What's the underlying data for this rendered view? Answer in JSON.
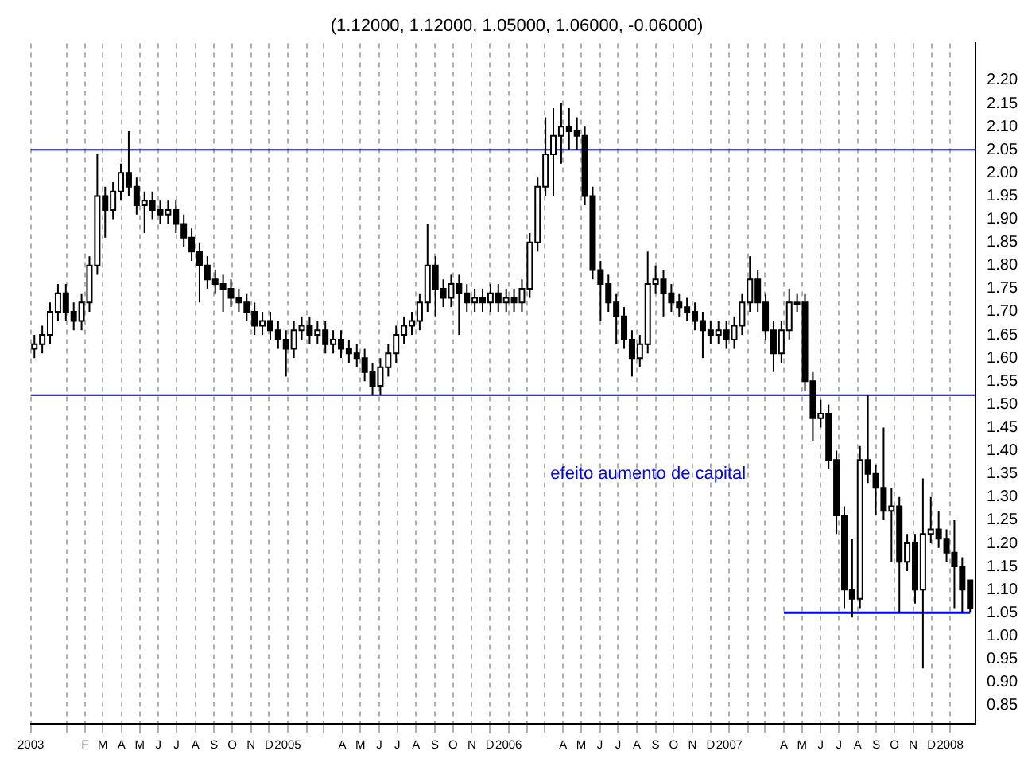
{
  "chart_data": {
    "type": "candlestick",
    "title": "(1.12000, 1.12000, 1.05000, 1.06000, -0.06000)",
    "x": [
      "2003-11-09",
      "2003-11-22",
      "2003-12-05",
      "2003-12-18",
      "2003-12-31",
      "2004-01-13",
      "2004-01-26",
      "2004-02-08",
      "2004-02-21",
      "2004-03-05",
      "2004-03-18",
      "2004-03-31",
      "2004-04-13",
      "2004-04-26",
      "2004-05-09",
      "2004-05-22",
      "2004-06-04",
      "2004-06-17",
      "2004-06-30",
      "2004-07-13",
      "2004-07-26",
      "2004-08-08",
      "2004-08-21",
      "2004-09-03",
      "2004-09-16",
      "2004-09-29",
      "2004-10-12",
      "2004-10-25",
      "2004-11-07",
      "2004-11-20",
      "2004-12-03",
      "2004-12-16",
      "2004-12-29",
      "2005-01-11",
      "2005-01-24",
      "2005-02-06",
      "2005-02-19",
      "2005-03-04",
      "2005-03-17",
      "2005-03-30",
      "2005-04-12",
      "2005-04-25",
      "2005-05-08",
      "2005-05-21",
      "2005-06-03",
      "2005-06-16",
      "2005-06-29",
      "2005-07-12",
      "2005-07-25",
      "2005-08-07",
      "2005-08-20",
      "2005-09-02",
      "2005-09-15",
      "2005-09-28",
      "2005-10-11",
      "2005-10-24",
      "2005-11-06",
      "2005-11-19",
      "2005-12-02",
      "2005-12-15",
      "2005-12-28",
      "2006-01-10",
      "2006-01-23",
      "2006-02-05",
      "2006-02-18",
      "2006-03-03",
      "2006-03-16",
      "2006-03-29",
      "2006-04-11",
      "2006-04-24",
      "2006-05-07",
      "2006-05-20",
      "2006-06-02",
      "2006-06-15",
      "2006-06-28",
      "2006-07-11",
      "2006-07-24",
      "2006-08-06",
      "2006-08-19",
      "2006-09-01",
      "2006-09-14",
      "2006-09-27",
      "2006-10-10",
      "2006-10-23",
      "2006-11-05",
      "2006-11-18",
      "2006-12-01",
      "2006-12-14",
      "2006-12-27",
      "2007-01-09",
      "2007-01-22",
      "2007-02-04",
      "2007-02-17",
      "2007-03-02",
      "2007-03-15",
      "2007-03-28",
      "2007-04-10",
      "2007-04-23",
      "2007-05-06",
      "2007-05-19",
      "2007-06-01",
      "2007-06-14",
      "2007-06-27",
      "2007-07-10",
      "2007-07-23",
      "2007-08-05",
      "2007-08-18",
      "2007-08-31",
      "2007-09-13",
      "2007-09-26",
      "2007-10-09",
      "2007-10-22",
      "2007-11-04",
      "2007-11-17",
      "2007-11-30",
      "2007-12-13",
      "2007-12-26",
      "2008-01-08",
      "2008-01-21",
      "2008-02-03"
    ],
    "ohlc": [
      [
        1.62,
        1.65,
        1.6,
        1.63
      ],
      [
        1.63,
        1.67,
        1.61,
        1.65
      ],
      [
        1.65,
        1.72,
        1.63,
        1.7
      ],
      [
        1.7,
        1.76,
        1.68,
        1.74
      ],
      [
        1.74,
        1.76,
        1.68,
        1.7
      ],
      [
        1.7,
        1.72,
        1.66,
        1.68
      ],
      [
        1.68,
        1.74,
        1.66,
        1.72
      ],
      [
        1.72,
        1.82,
        1.7,
        1.8
      ],
      [
        1.8,
        2.04,
        1.78,
        1.95
      ],
      [
        1.95,
        1.97,
        1.86,
        1.92
      ],
      [
        1.92,
        1.98,
        1.9,
        1.96
      ],
      [
        1.96,
        2.02,
        1.94,
        2.0
      ],
      [
        2.0,
        2.09,
        1.95,
        1.97
      ],
      [
        1.97,
        1.99,
        1.91,
        1.93
      ],
      [
        1.93,
        1.96,
        1.87,
        1.94
      ],
      [
        1.94,
        1.96,
        1.9,
        1.92
      ],
      [
        1.92,
        1.94,
        1.89,
        1.91
      ],
      [
        1.91,
        1.94,
        1.89,
        1.92
      ],
      [
        1.92,
        1.94,
        1.87,
        1.89
      ],
      [
        1.89,
        1.91,
        1.84,
        1.86
      ],
      [
        1.86,
        1.88,
        1.81,
        1.83
      ],
      [
        1.83,
        1.85,
        1.72,
        1.8
      ],
      [
        1.8,
        1.82,
        1.75,
        1.77
      ],
      [
        1.77,
        1.79,
        1.74,
        1.76
      ],
      [
        1.76,
        1.78,
        1.7,
        1.75
      ],
      [
        1.75,
        1.77,
        1.71,
        1.73
      ],
      [
        1.73,
        1.75,
        1.7,
        1.72
      ],
      [
        1.72,
        1.74,
        1.68,
        1.7
      ],
      [
        1.7,
        1.72,
        1.65,
        1.67
      ],
      [
        1.67,
        1.7,
        1.65,
        1.68
      ],
      [
        1.68,
        1.7,
        1.64,
        1.66
      ],
      [
        1.66,
        1.68,
        1.62,
        1.64
      ],
      [
        1.64,
        1.66,
        1.56,
        1.62
      ],
      [
        1.62,
        1.68,
        1.6,
        1.66
      ],
      [
        1.66,
        1.69,
        1.64,
        1.67
      ],
      [
        1.67,
        1.69,
        1.63,
        1.65
      ],
      [
        1.65,
        1.68,
        1.63,
        1.66
      ],
      [
        1.66,
        1.68,
        1.61,
        1.63
      ],
      [
        1.63,
        1.66,
        1.61,
        1.64
      ],
      [
        1.64,
        1.66,
        1.6,
        1.62
      ],
      [
        1.62,
        1.64,
        1.59,
        1.61
      ],
      [
        1.61,
        1.63,
        1.58,
        1.6
      ],
      [
        1.6,
        1.62,
        1.55,
        1.57
      ],
      [
        1.57,
        1.59,
        1.52,
        1.54
      ],
      [
        1.54,
        1.6,
        1.52,
        1.58
      ],
      [
        1.58,
        1.63,
        1.56,
        1.61
      ],
      [
        1.61,
        1.67,
        1.59,
        1.65
      ],
      [
        1.65,
        1.69,
        1.63,
        1.67
      ],
      [
        1.67,
        1.7,
        1.65,
        1.68
      ],
      [
        1.68,
        1.74,
        1.66,
        1.72
      ],
      [
        1.72,
        1.89,
        1.7,
        1.8
      ],
      [
        1.8,
        1.82,
        1.69,
        1.75
      ],
      [
        1.75,
        1.77,
        1.71,
        1.73
      ],
      [
        1.73,
        1.78,
        1.71,
        1.76
      ],
      [
        1.76,
        1.78,
        1.65,
        1.74
      ],
      [
        1.74,
        1.76,
        1.7,
        1.72
      ],
      [
        1.72,
        1.75,
        1.7,
        1.73
      ],
      [
        1.73,
        1.75,
        1.7,
        1.72
      ],
      [
        1.72,
        1.76,
        1.7,
        1.74
      ],
      [
        1.74,
        1.76,
        1.7,
        1.72
      ],
      [
        1.72,
        1.75,
        1.7,
        1.73
      ],
      [
        1.73,
        1.75,
        1.7,
        1.72
      ],
      [
        1.72,
        1.77,
        1.7,
        1.75
      ],
      [
        1.75,
        1.87,
        1.73,
        1.85
      ],
      [
        1.85,
        1.99,
        1.83,
        1.97
      ],
      [
        1.97,
        2.12,
        1.95,
        2.04
      ],
      [
        2.04,
        2.14,
        1.95,
        2.08
      ],
      [
        2.08,
        2.15,
        2.02,
        2.1
      ],
      [
        2.1,
        2.14,
        2.05,
        2.09
      ],
      [
        2.09,
        2.12,
        2.05,
        2.08
      ],
      [
        2.08,
        2.1,
        1.93,
        1.95
      ],
      [
        1.95,
        1.97,
        1.77,
        1.79
      ],
      [
        1.79,
        1.81,
        1.68,
        1.76
      ],
      [
        1.76,
        1.78,
        1.7,
        1.72
      ],
      [
        1.72,
        1.74,
        1.63,
        1.69
      ],
      [
        1.69,
        1.71,
        1.62,
        1.64
      ],
      [
        1.64,
        1.66,
        1.56,
        1.6
      ],
      [
        1.6,
        1.65,
        1.58,
        1.63
      ],
      [
        1.63,
        1.83,
        1.61,
        1.76
      ],
      [
        1.76,
        1.8,
        1.74,
        1.77
      ],
      [
        1.77,
        1.79,
        1.69,
        1.74
      ],
      [
        1.74,
        1.76,
        1.7,
        1.72
      ],
      [
        1.72,
        1.74,
        1.69,
        1.71
      ],
      [
        1.71,
        1.73,
        1.68,
        1.7
      ],
      [
        1.7,
        1.72,
        1.66,
        1.68
      ],
      [
        1.68,
        1.7,
        1.6,
        1.66
      ],
      [
        1.66,
        1.68,
        1.63,
        1.65
      ],
      [
        1.65,
        1.68,
        1.63,
        1.66
      ],
      [
        1.66,
        1.68,
        1.62,
        1.64
      ],
      [
        1.64,
        1.69,
        1.62,
        1.67
      ],
      [
        1.67,
        1.74,
        1.65,
        1.72
      ],
      [
        1.72,
        1.82,
        1.7,
        1.77
      ],
      [
        1.77,
        1.79,
        1.7,
        1.72
      ],
      [
        1.72,
        1.74,
        1.64,
        1.66
      ],
      [
        1.66,
        1.68,
        1.57,
        1.61
      ],
      [
        1.61,
        1.68,
        1.59,
        1.66
      ],
      [
        1.66,
        1.75,
        1.64,
        1.72
      ],
      [
        1.72,
        1.74,
        1.7,
        1.72
      ],
      [
        1.72,
        1.74,
        1.53,
        1.55
      ],
      [
        1.55,
        1.57,
        1.42,
        1.47
      ],
      [
        1.47,
        1.51,
        1.45,
        1.48
      ],
      [
        1.48,
        1.5,
        1.36,
        1.38
      ],
      [
        1.38,
        1.4,
        1.22,
        1.26
      ],
      [
        1.26,
        1.28,
        1.06,
        1.1
      ],
      [
        1.1,
        1.21,
        1.04,
        1.08
      ],
      [
        1.08,
        1.41,
        1.06,
        1.38
      ],
      [
        1.38,
        1.52,
        1.33,
        1.35
      ],
      [
        1.35,
        1.37,
        1.26,
        1.32
      ],
      [
        1.32,
        1.45,
        1.25,
        1.27
      ],
      [
        1.27,
        1.32,
        1.16,
        1.28
      ],
      [
        1.28,
        1.3,
        1.05,
        1.16
      ],
      [
        1.16,
        1.22,
        1.14,
        1.2
      ],
      [
        1.2,
        1.22,
        1.07,
        1.1
      ],
      [
        1.1,
        1.34,
        0.93,
        1.22
      ],
      [
        1.22,
        1.3,
        1.2,
        1.23
      ],
      [
        1.23,
        1.27,
        1.19,
        1.21
      ],
      [
        1.21,
        1.23,
        1.16,
        1.18
      ],
      [
        1.18,
        1.25,
        1.06,
        1.15
      ],
      [
        1.15,
        1.17,
        1.05,
        1.1
      ],
      [
        1.12,
        1.12,
        1.05,
        1.06
      ]
    ],
    "series": [
      {
        "type": "line",
        "color": "#0000ff",
        "x": [
          "2007-04-01",
          "2008-02-03"
        ],
        "values": [
          1.05,
          1.05
        ]
      }
    ],
    "ref_lines": [
      {
        "axis": "y",
        "value": 2.05,
        "color": "#0000ff"
      },
      {
        "axis": "y",
        "value": 1.52,
        "color": "#000080"
      }
    ],
    "annotations": [
      "efeito aumento de capital"
    ],
    "xlim": [
      "2003-11-03",
      "2008-02-12"
    ],
    "xticks": [
      {
        "value": "2003-11-03",
        "label": "2003"
      },
      {
        "value": "2004-01",
        "label": null
      },
      {
        "value": "2004-02",
        "label": "F"
      },
      {
        "value": "2004-03",
        "label": "M"
      },
      {
        "value": "2004-04",
        "label": "A"
      },
      {
        "value": "2004-05",
        "label": "M"
      },
      {
        "value": "2004-06",
        "label": "J"
      },
      {
        "value": "2004-07",
        "label": "J"
      },
      {
        "value": "2004-08",
        "label": "A"
      },
      {
        "value": "2004-09",
        "label": "S"
      },
      {
        "value": "2004-10",
        "label": "O"
      },
      {
        "value": "2004-11",
        "label": "N"
      },
      {
        "value": "2004-12",
        "label": "D"
      },
      {
        "value": "2005-01",
        "label": "2005"
      },
      {
        "value": "2005-02",
        "label": null
      },
      {
        "value": "2005-03",
        "label": null
      },
      {
        "value": "2005-04",
        "label": "A"
      },
      {
        "value": "2005-05",
        "label": "M"
      },
      {
        "value": "2005-06",
        "label": "J"
      },
      {
        "value": "2005-07",
        "label": "J"
      },
      {
        "value": "2005-08",
        "label": "A"
      },
      {
        "value": "2005-09",
        "label": "S"
      },
      {
        "value": "2005-10",
        "label": "O"
      },
      {
        "value": "2005-11",
        "label": "N"
      },
      {
        "value": "2005-12",
        "label": "D"
      },
      {
        "value": "2006-01",
        "label": "2006"
      },
      {
        "value": "2006-02",
        "label": null
      },
      {
        "value": "2006-03",
        "label": null
      },
      {
        "value": "2006-04",
        "label": "A"
      },
      {
        "value": "2006-05",
        "label": "M"
      },
      {
        "value": "2006-06",
        "label": "J"
      },
      {
        "value": "2006-07",
        "label": "J"
      },
      {
        "value": "2006-08",
        "label": "A"
      },
      {
        "value": "2006-09",
        "label": "S"
      },
      {
        "value": "2006-10",
        "label": "O"
      },
      {
        "value": "2006-11",
        "label": "N"
      },
      {
        "value": "2006-12",
        "label": "D"
      },
      {
        "value": "2007-01",
        "label": "2007"
      },
      {
        "value": "2007-02",
        "label": null
      },
      {
        "value": "2007-03",
        "label": null
      },
      {
        "value": "2007-04",
        "label": "A"
      },
      {
        "value": "2007-05",
        "label": "M"
      },
      {
        "value": "2007-06",
        "label": "J"
      },
      {
        "value": "2007-07",
        "label": "J"
      },
      {
        "value": "2007-08",
        "label": "A"
      },
      {
        "value": "2007-09",
        "label": "S"
      },
      {
        "value": "2007-10",
        "label": "O"
      },
      {
        "value": "2007-11",
        "label": "N"
      },
      {
        "value": "2007-12",
        "label": "D"
      },
      {
        "value": "2008-01",
        "label": "2008"
      }
    ],
    "ylim": [
      0.81,
      2.28
    ],
    "yticks": [
      {
        "value": 0.85,
        "label": "0.85"
      },
      {
        "value": 0.9,
        "label": "0.90"
      },
      {
        "value": 0.95,
        "label": "0.95"
      },
      {
        "value": 1.0,
        "label": "1.00"
      },
      {
        "value": 1.05,
        "label": "1.05"
      },
      {
        "value": 1.1,
        "label": "1.10"
      },
      {
        "value": 1.15,
        "label": "1.15"
      },
      {
        "value": 1.2,
        "label": "1.20"
      },
      {
        "value": 1.25,
        "label": "1.25"
      },
      {
        "value": 1.3,
        "label": "1.30"
      },
      {
        "value": 1.35,
        "label": "1.35"
      },
      {
        "value": 1.4,
        "label": "1.40"
      },
      {
        "value": 1.45,
        "label": "1.45"
      },
      {
        "value": 1.5,
        "label": "1.50"
      },
      {
        "value": 1.55,
        "label": "1.55"
      },
      {
        "value": 1.6,
        "label": "1.60"
      },
      {
        "value": 1.65,
        "label": "1.65"
      },
      {
        "value": 1.7,
        "label": "1.70"
      },
      {
        "value": 1.75,
        "label": "1.75"
      },
      {
        "value": 1.8,
        "label": "1.80"
      },
      {
        "value": 1.85,
        "label": "1.85"
      },
      {
        "value": 1.9,
        "label": "1.90"
      },
      {
        "value": 1.95,
        "label": "1.95"
      },
      {
        "value": 2.0,
        "label": "2.00"
      },
      {
        "value": 2.05,
        "label": "2.05"
      },
      {
        "value": 2.1,
        "label": "2.10"
      },
      {
        "value": 2.15,
        "label": "2.15"
      },
      {
        "value": 2.2,
        "label": "2.20"
      }
    ],
    "grid": "x",
    "legend": false
  }
}
